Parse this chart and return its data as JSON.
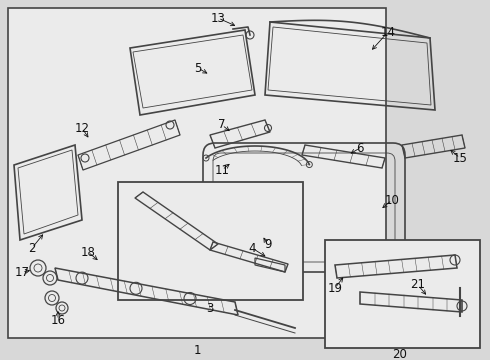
{
  "bg_color": "#d8d8d8",
  "main_box_color": "#ebebeb",
  "inset_box_color": "#ebebeb",
  "line_color": "#444444",
  "text_color": "#111111",
  "label_fontsize": 8.5,
  "figsize": [
    4.9,
    3.6
  ],
  "dpi": 100
}
